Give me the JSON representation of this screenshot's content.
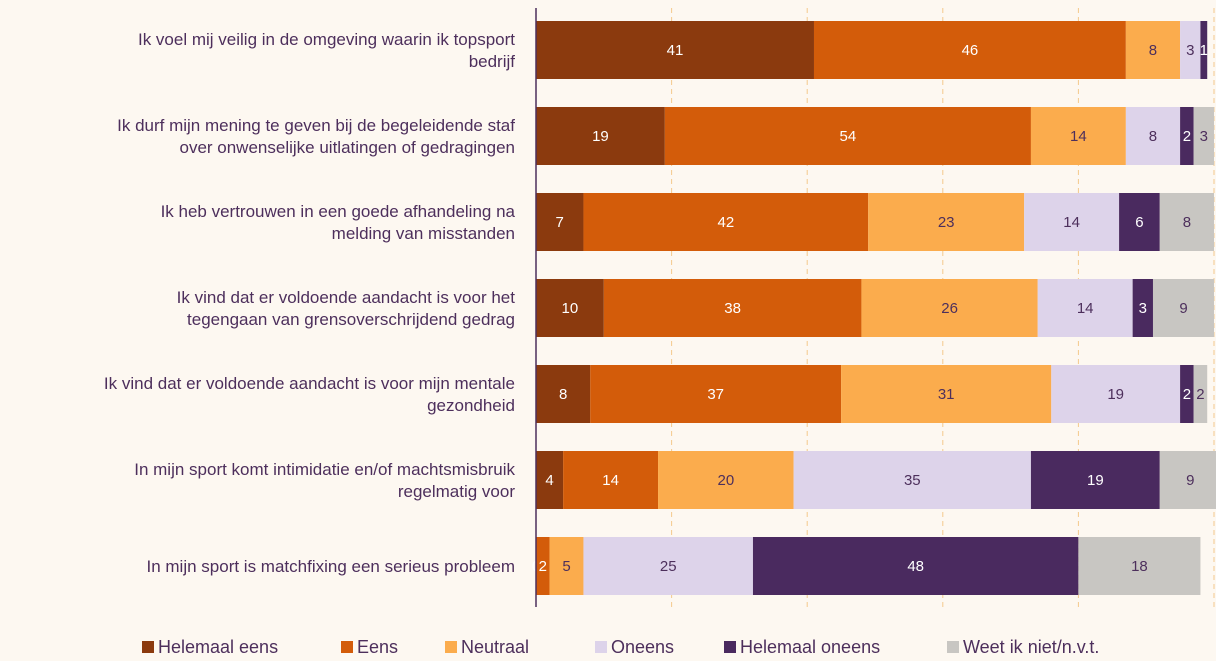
{
  "chart_data": {
    "type": "bar",
    "orientation": "horizontal",
    "stacked": true,
    "xlim": [
      0,
      100
    ],
    "grid": true,
    "legend_position": "bottom",
    "title": "",
    "xlabel": "",
    "ylabel": "",
    "categories": [
      [
        "Ik voel mij veilig in de omgeving waarin ik topsport",
        "bedrijf"
      ],
      [
        "Ik durf mijn mening te geven bij de begeleidende staf",
        "over onwenselijke uitlatingen of gedragingen"
      ],
      [
        "Ik heb vertrouwen in een goede afhandeling na",
        "melding van misstanden"
      ],
      [
        "Ik vind dat er voldoende aandacht is voor het",
        "tegengaan van grensoverschrijdend gedrag"
      ],
      [
        "Ik vind dat er voldoende aandacht is voor mijn mentale",
        "gezondheid"
      ],
      [
        "In mijn sport komt intimidatie en/of machtsmisbruik",
        "regelmatig voor"
      ],
      [
        "In mijn sport is matchfixing een serieus probleem"
      ]
    ],
    "series": [
      {
        "name": "Helemaal eens",
        "color": "#8b3a0e",
        "label_color": "#ffffff",
        "values": [
          41,
          19,
          7,
          10,
          8,
          4,
          0
        ]
      },
      {
        "name": "Eens",
        "color": "#d35c0a",
        "label_color": "#ffffff",
        "values": [
          46,
          54,
          42,
          38,
          37,
          14,
          2
        ]
      },
      {
        "name": "Neutraal",
        "color": "#fbac4d",
        "label_color": "#4d2f5c",
        "values": [
          8,
          14,
          23,
          26,
          31,
          20,
          5
        ]
      },
      {
        "name": "Oneens",
        "color": "#ddd3ea",
        "label_color": "#4d2f5c",
        "values": [
          3,
          8,
          14,
          14,
          19,
          35,
          25
        ]
      },
      {
        "name": "Helemaal oneens",
        "color": "#4a2a5f",
        "label_color": "#ffffff",
        "values": [
          1,
          2,
          6,
          3,
          2,
          19,
          48
        ]
      },
      {
        "name": "Weet ik niet/n.v.t.",
        "color": "#c8c6c2",
        "label_color": "#4d2f5c",
        "values": [
          0,
          3,
          8,
          9,
          2,
          9,
          18
        ]
      }
    ]
  }
}
